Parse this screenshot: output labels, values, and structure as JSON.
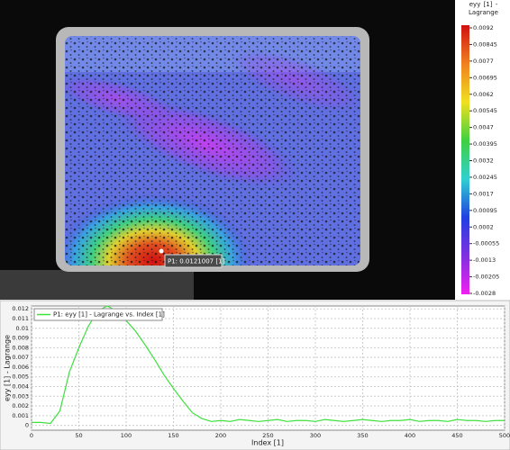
{
  "image": {
    "annotation": "P1: 0.0121007 [1]"
  },
  "colorbar": {
    "title": "eyy [1] - Lagrange",
    "clim": [
      -0.0028,
      0.0092
    ],
    "ticks": [
      0.0092,
      0.00845,
      0.0077,
      0.00695,
      0.0062,
      0.00545,
      0.0047,
      0.00395,
      0.0032,
      0.00245,
      0.0017,
      0.00095,
      0.0002,
      -0.00055,
      -0.0013,
      -0.00205,
      -0.0028
    ],
    "colors": [
      "#d01010",
      "#f08020",
      "#f0e020",
      "#40d040",
      "#30d0d0",
      "#2040e0",
      "#8030e0",
      "#f020f0"
    ]
  },
  "chart_data": {
    "type": "line",
    "x_label": "Index [1]",
    "y_label": "eyy [1] - Lagrange",
    "x": [
      0,
      10,
      20,
      30,
      40,
      50,
      60,
      70,
      80,
      90,
      100,
      110,
      120,
      130,
      140,
      150,
      160,
      170,
      180,
      190,
      200,
      210,
      220,
      230,
      240,
      250,
      260,
      270,
      280,
      290,
      300,
      310,
      320,
      330,
      340,
      350,
      360,
      370,
      380,
      390,
      400,
      410,
      420,
      430,
      440,
      450,
      460,
      470,
      480,
      490,
      500
    ],
    "series": [
      {
        "name": "P1: eyy [1] - Lagrange vs. Index [1]",
        "color": "#3ee03e",
        "values": [
          0.0003,
          0.0003,
          0.0002,
          0.0015,
          0.0055,
          0.008,
          0.0102,
          0.0118,
          0.0123,
          0.0118,
          0.0108,
          0.0097,
          0.0083,
          0.0068,
          0.0052,
          0.0038,
          0.0025,
          0.0013,
          0.0007,
          0.0004,
          0.0005,
          0.0004,
          0.0006,
          0.0005,
          0.0004,
          0.0005,
          0.0006,
          0.0004,
          0.0005,
          0.0005,
          0.0004,
          0.0006,
          0.0005,
          0.0004,
          0.0005,
          0.0006,
          0.0005,
          0.0004,
          0.0005,
          0.0005,
          0.0006,
          0.0004,
          0.0005,
          0.0005,
          0.0004,
          0.0006,
          0.0005,
          0.0005,
          0.0004,
          0.0005,
          0.0005
        ]
      }
    ],
    "xlim": [
      0,
      500
    ],
    "xticks": [
      0,
      50,
      100,
      150,
      200,
      250,
      300,
      350,
      400,
      450,
      500
    ],
    "ylim": [
      -0.0005,
      0.0123
    ],
    "yticks": [
      0,
      0.001,
      0.002,
      0.003,
      0.004,
      0.005,
      0.006,
      0.007,
      0.008,
      0.009,
      0.01,
      0.011,
      0.012
    ],
    "grid": true
  }
}
